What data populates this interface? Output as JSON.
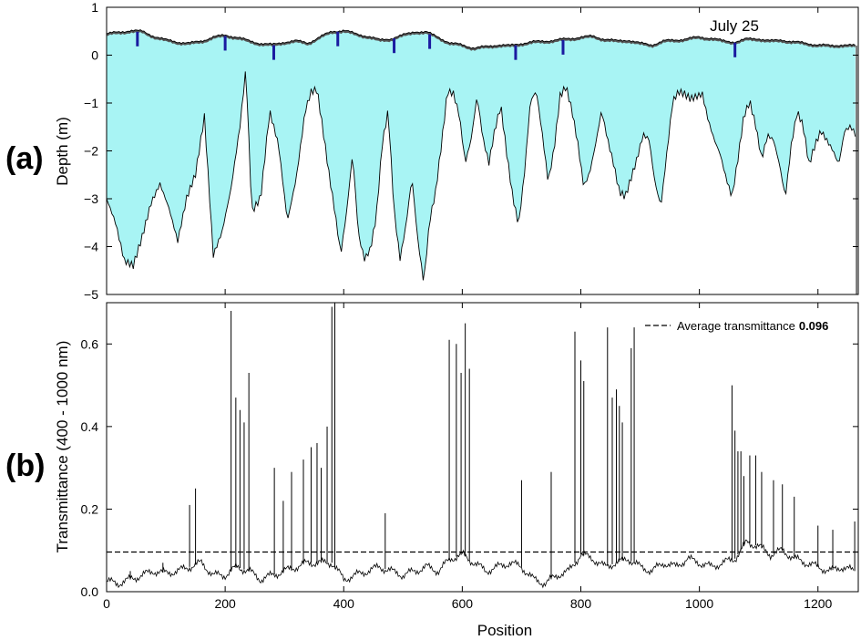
{
  "colors": {
    "ice_fill": "#a8f4f4",
    "surface_fill": "#1a1aa0",
    "line": "#000000",
    "background": "#ffffff"
  },
  "chart_data": [
    {
      "panel": "(a)",
      "type": "area",
      "annotation": "July 25",
      "xlabel": "",
      "ylabel": "Depth (m)",
      "xlim": [
        0,
        1268
      ],
      "ylim": [
        -5,
        1
      ],
      "xticks": [
        0,
        200,
        400,
        600,
        800,
        1000,
        1200
      ],
      "yticks": [
        1,
        0,
        -1,
        -2,
        -3,
        -4,
        -5
      ],
      "grid": false,
      "surface_top": {
        "x": [
          0,
          20,
          40,
          60,
          80,
          100,
          120,
          140,
          160,
          180,
          200,
          220,
          240,
          260,
          280,
          300,
          320,
          340,
          360,
          380,
          400,
          420,
          440,
          460,
          480,
          500,
          520,
          540,
          560,
          580,
          600,
          620,
          640,
          660,
          680,
          700,
          720,
          740,
          760,
          780,
          800,
          820,
          840,
          860,
          880,
          900,
          920,
          940,
          960,
          980,
          1000,
          1020,
          1040,
          1060,
          1080,
          1100,
          1120,
          1140,
          1160,
          1180,
          1200,
          1220,
          1240,
          1260
        ],
        "values": [
          0.45,
          0.48,
          0.52,
          0.5,
          0.4,
          0.32,
          0.28,
          0.25,
          0.3,
          0.38,
          0.42,
          0.38,
          0.3,
          0.25,
          0.22,
          0.28,
          0.3,
          0.26,
          0.38,
          0.5,
          0.52,
          0.45,
          0.4,
          0.32,
          0.35,
          0.42,
          0.5,
          0.48,
          0.38,
          0.25,
          0.22,
          0.15,
          0.18,
          0.22,
          0.2,
          0.25,
          0.28,
          0.3,
          0.32,
          0.35,
          0.38,
          0.4,
          0.34,
          0.3,
          0.32,
          0.25,
          0.22,
          0.3,
          0.32,
          0.35,
          0.38,
          0.36,
          0.3,
          0.28,
          0.34,
          0.35,
          0.3,
          0.32,
          0.28,
          0.25,
          0.22,
          0.2,
          0.22,
          0.2
        ]
      },
      "ice_bottom": {
        "x": [
          0,
          15,
          30,
          45,
          60,
          75,
          90,
          105,
          120,
          135,
          150,
          165,
          180,
          195,
          210,
          225,
          235,
          245,
          260,
          275,
          290,
          305,
          320,
          335,
          345,
          355,
          365,
          375,
          385,
          395,
          405,
          415,
          425,
          435,
          445,
          455,
          465,
          475,
          485,
          495,
          505,
          515,
          525,
          535,
          545,
          555,
          565,
          575,
          585,
          595,
          605,
          615,
          625,
          635,
          645,
          655,
          665,
          675,
          685,
          695,
          705,
          715,
          725,
          735,
          745,
          755,
          765,
          775,
          785,
          795,
          805,
          815,
          825,
          835,
          845,
          855,
          865,
          875,
          885,
          895,
          905,
          915,
          925,
          935,
          945,
          955,
          965,
          975,
          985,
          995,
          1005,
          1015,
          1025,
          1035,
          1045,
          1055,
          1065,
          1075,
          1085,
          1095,
          1105,
          1115,
          1125,
          1135,
          1145,
          1155,
          1165,
          1175,
          1185,
          1195,
          1205,
          1215,
          1225,
          1235,
          1245,
          1255,
          1265
        ],
        "values": [
          -3.0,
          -3.5,
          -4.3,
          -4.4,
          -3.8,
          -3.1,
          -2.7,
          -3.2,
          -3.9,
          -3.0,
          -2.5,
          -1.3,
          -4.2,
          -3.7,
          -2.8,
          -1.5,
          -0.3,
          -3.3,
          -3.0,
          -1.2,
          -1.9,
          -3.5,
          -2.6,
          -1.2,
          -0.8,
          -0.75,
          -1.6,
          -2.5,
          -3.3,
          -4.2,
          -3.3,
          -2.1,
          -3.8,
          -4.3,
          -4.1,
          -3.4,
          -1.9,
          -1.2,
          -3.3,
          -4.3,
          -3.6,
          -2.6,
          -3.9,
          -4.8,
          -3.5,
          -2.9,
          -1.9,
          -0.8,
          -0.85,
          -1.3,
          -2.3,
          -1.8,
          -0.9,
          -1.8,
          -2.3,
          -1.6,
          -1.1,
          -2.1,
          -3.0,
          -3.6,
          -2.5,
          -1.0,
          -0.8,
          -1.7,
          -2.7,
          -2.0,
          -0.9,
          -0.7,
          -1.2,
          -1.9,
          -2.8,
          -2.5,
          -1.9,
          -1.2,
          -1.8,
          -2.3,
          -2.9,
          -3.0,
          -2.6,
          -2.2,
          -1.7,
          -1.8,
          -2.7,
          -3.2,
          -2.1,
          -1.0,
          -0.8,
          -0.85,
          -0.95,
          -0.9,
          -0.85,
          -1.4,
          -1.8,
          -2.1,
          -2.6,
          -3.0,
          -2.2,
          -1.3,
          -1.0,
          -1.5,
          -2.2,
          -1.7,
          -1.8,
          -2.3,
          -3.0,
          -1.9,
          -1.2,
          -1.5,
          -2.3,
          -1.9,
          -1.6,
          -1.8,
          -2.0,
          -2.3,
          -1.6,
          -1.5,
          -1.7
        ]
      }
    },
    {
      "panel": "(b)",
      "type": "line",
      "xlabel": "Position",
      "ylabel": "Transmittance (400 - 1000 nm)",
      "xlim": [
        0,
        1268
      ],
      "ylim": [
        0,
        0.7
      ],
      "xticks": [
        0,
        200,
        400,
        600,
        800,
        1000,
        1200
      ],
      "yticks": [
        0.0,
        0.2,
        0.4,
        0.6
      ],
      "ytick_labels": [
        "0.0",
        "0.2",
        "0.4",
        "0.6"
      ],
      "xtick_labels": [
        "0",
        "200",
        "400",
        "600",
        "800",
        "1000",
        "1200"
      ],
      "grid": false,
      "legend": {
        "placement": "top-right",
        "label": "Average transmittance",
        "value_label": "0.096",
        "style": "dashed"
      },
      "average": 0.096,
      "baseline": {
        "x": [
          0,
          20,
          40,
          60,
          80,
          100,
          120,
          140,
          160,
          180,
          200,
          220,
          240,
          260,
          280,
          300,
          320,
          340,
          360,
          380,
          400,
          420,
          440,
          460,
          480,
          500,
          520,
          540,
          560,
          580,
          600,
          620,
          640,
          660,
          680,
          700,
          720,
          740,
          760,
          780,
          800,
          820,
          840,
          860,
          880,
          900,
          920,
          940,
          960,
          980,
          1000,
          1020,
          1040,
          1060,
          1080,
          1100,
          1120,
          1140,
          1160,
          1180,
          1200,
          1220,
          1240,
          1260
        ],
        "values": [
          0.025,
          0.02,
          0.03,
          0.04,
          0.05,
          0.045,
          0.05,
          0.06,
          0.07,
          0.04,
          0.04,
          0.06,
          0.05,
          0.03,
          0.04,
          0.05,
          0.06,
          0.07,
          0.07,
          0.07,
          0.03,
          0.04,
          0.05,
          0.06,
          0.05,
          0.04,
          0.05,
          0.06,
          0.05,
          0.08,
          0.09,
          0.07,
          0.05,
          0.06,
          0.07,
          0.06,
          0.03,
          0.02,
          0.04,
          0.05,
          0.09,
          0.08,
          0.06,
          0.07,
          0.08,
          0.06,
          0.05,
          0.07,
          0.06,
          0.08,
          0.07,
          0.06,
          0.07,
          0.08,
          0.12,
          0.11,
          0.09,
          0.1,
          0.08,
          0.07,
          0.06,
          0.05,
          0.06,
          0.05
        ]
      },
      "spikes": {
        "x": [
          40,
          95,
          140,
          150,
          210,
          218,
          225,
          232,
          240,
          283,
          298,
          312,
          332,
          345,
          355,
          362,
          372,
          380,
          385,
          470,
          578,
          590,
          598,
          605,
          612,
          700,
          750,
          790,
          800,
          805,
          845,
          853,
          860,
          865,
          870,
          885,
          890,
          1055,
          1060,
          1065,
          1070,
          1075,
          1085,
          1095,
          1105,
          1125,
          1140,
          1160,
          1200,
          1225,
          1262
        ],
        "values": [
          0.05,
          0.07,
          0.21,
          0.25,
          0.68,
          0.47,
          0.44,
          0.41,
          0.53,
          0.3,
          0.22,
          0.29,
          0.32,
          0.35,
          0.36,
          0.3,
          0.4,
          0.69,
          0.75,
          0.19,
          0.61,
          0.6,
          0.53,
          0.65,
          0.54,
          0.27,
          0.29,
          0.63,
          0.56,
          0.51,
          0.64,
          0.47,
          0.49,
          0.45,
          0.41,
          0.59,
          0.64,
          0.5,
          0.39,
          0.34,
          0.34,
          0.28,
          0.33,
          0.33,
          0.29,
          0.27,
          0.26,
          0.23,
          0.16,
          0.15,
          0.17
        ]
      }
    }
  ]
}
